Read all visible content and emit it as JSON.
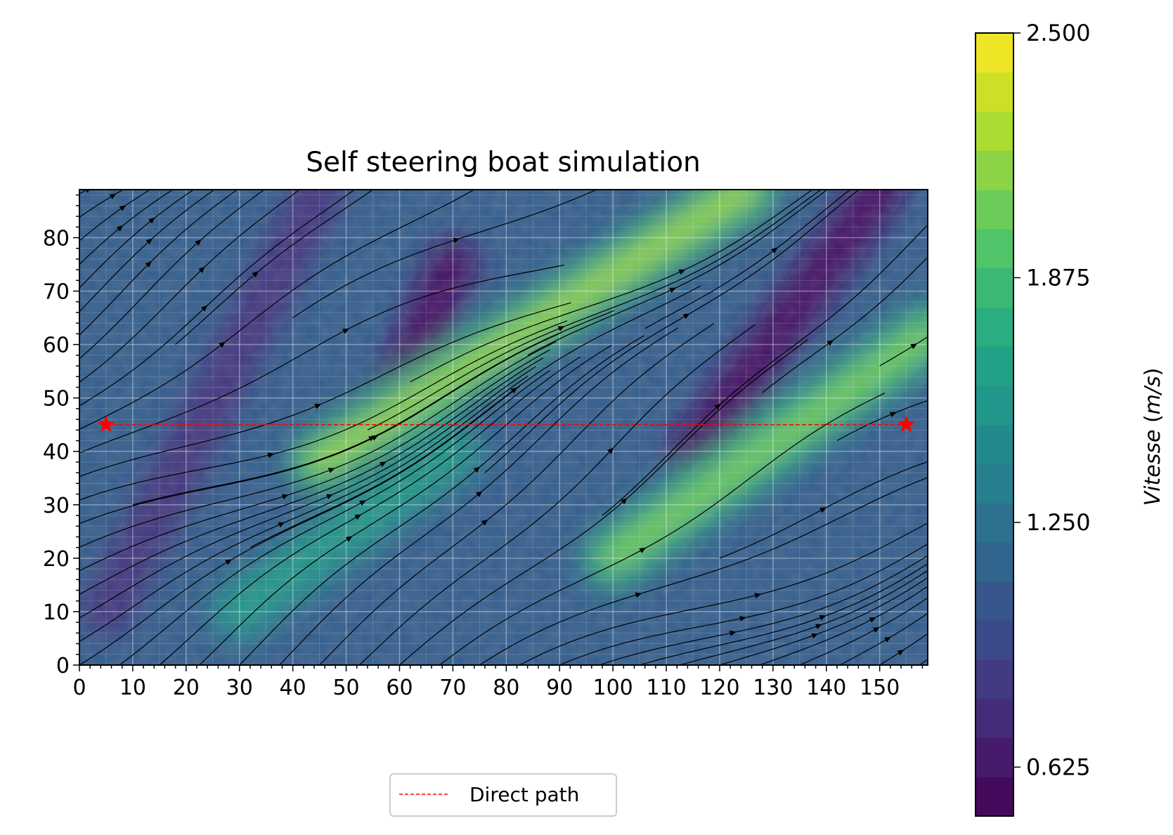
{
  "chart_data": {
    "type": "heatmap",
    "title": "Self steering boat simulation",
    "xlabel": "",
    "ylabel": "",
    "xlim": [
      0,
      159
    ],
    "ylim": [
      0,
      89
    ],
    "x_ticks": [
      0,
      10,
      20,
      30,
      40,
      50,
      60,
      70,
      80,
      90,
      100,
      110,
      120,
      130,
      140,
      150
    ],
    "y_ticks": [
      0,
      10,
      20,
      30,
      40,
      50,
      60,
      70,
      80
    ],
    "grid": true,
    "field": {
      "variable": "Vitesse",
      "description": "Speed field with diagonal bands of high speed running from lower-left to upper-right; streamlines show flow direction toward upper-right",
      "high_speed_bands": [
        {
          "from": [
            45,
            38
          ],
          "to": [
            125,
            89
          ],
          "peak": 2.2
        },
        {
          "from": [
            100,
            20
          ],
          "to": [
            159,
            62
          ],
          "peak": 2.1
        },
        {
          "from": [
            30,
            10
          ],
          "to": [
            70,
            40
          ],
          "peak": 1.6
        }
      ],
      "low_speed_bands": [
        {
          "from": [
            5,
            10
          ],
          "to": [
            45,
            89
          ],
          "min": 0.8
        },
        {
          "from": [
            55,
            40
          ],
          "to": [
            70,
            75
          ],
          "min": 0.6
        },
        {
          "from": [
            115,
            40
          ],
          "to": [
            150,
            89
          ],
          "min": 0.6
        }
      ]
    },
    "colorbar": {
      "label": "Vitesse (m/s)",
      "min": 0.5,
      "max": 2.5,
      "ticks": [
        0.625,
        1.25,
        1.875,
        2.5
      ],
      "tick_labels": [
        "0.625",
        "1.250",
        "1.875",
        "2.500"
      ],
      "levels": 20,
      "colormap": "viridis"
    },
    "series": [
      {
        "name": "Direct path",
        "type": "line",
        "style": "dashed",
        "color": "#ff0000",
        "x": [
          5,
          155
        ],
        "y": [
          45,
          45
        ]
      }
    ],
    "markers": [
      {
        "type": "star",
        "color": "#ff0000",
        "x": 5,
        "y": 45
      },
      {
        "type": "star",
        "color": "#ff0000",
        "x": 155,
        "y": 45
      }
    ],
    "streamlines": {
      "color": "#000000",
      "direction": "lower-left to upper-right"
    },
    "legend": {
      "placement": "bottom-center",
      "entries": [
        "Direct path"
      ]
    }
  }
}
